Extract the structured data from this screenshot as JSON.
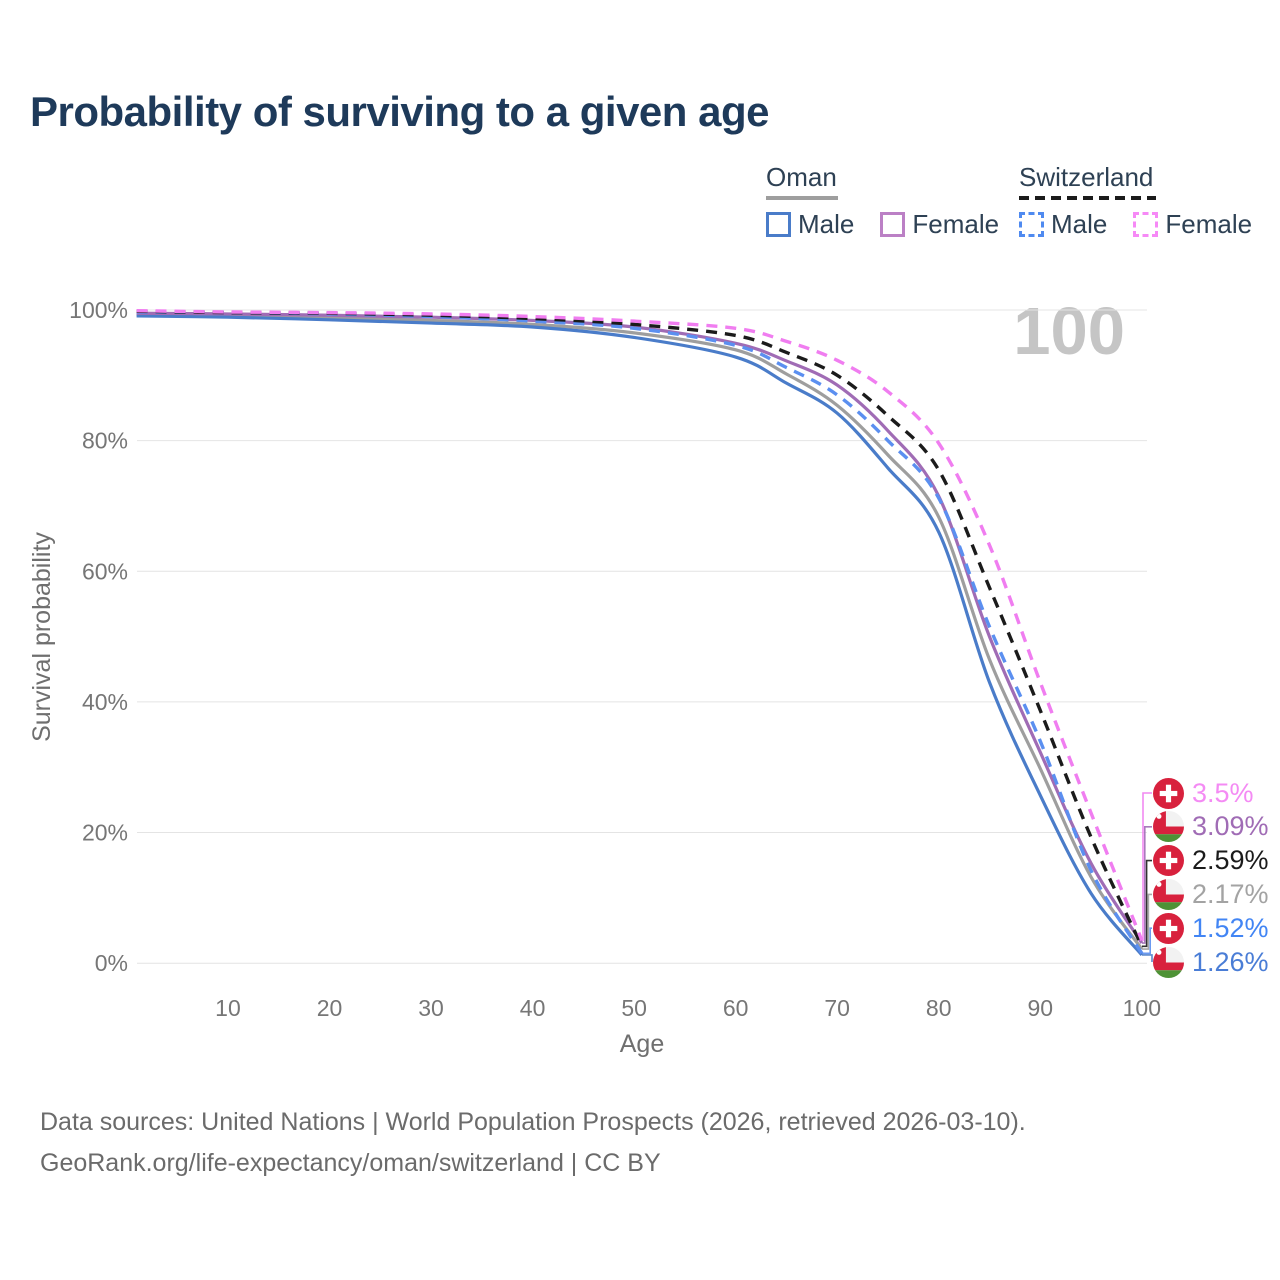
{
  "title": "Probability of surviving to a given age",
  "legend": {
    "oman": {
      "title": "Oman",
      "male": "Male",
      "female": "Female"
    },
    "switzerland": {
      "title": "Switzerland",
      "male": "Male",
      "female": "Female"
    }
  },
  "footer": {
    "line1": "Data sources: United Nations | World Population Prospects (2026, retrieved 2026-03-10).",
    "line2": "GeoRank.org/life-expectancy/oman/switzerland | CC BY"
  },
  "chart_data": {
    "type": "line",
    "title": "Probability of surviving to a given age",
    "xlabel": "Age",
    "ylabel": "Survival probability",
    "watermark": "100",
    "xlim": [
      1,
      100
    ],
    "ylim": [
      0,
      100
    ],
    "x_ticks": [
      10,
      20,
      30,
      40,
      50,
      60,
      70,
      80,
      90,
      100
    ],
    "y_ticks": [
      0,
      20,
      40,
      60,
      80,
      100
    ],
    "y_tick_suffix": "%",
    "grid": "horizontal",
    "legend_position": "top-right",
    "x": [
      1,
      10,
      20,
      30,
      40,
      50,
      60,
      65,
      70,
      75,
      80,
      85,
      90,
      95,
      100
    ],
    "series": [
      {
        "name": "Oman Both sexes",
        "country": "Oman",
        "sex": "both",
        "color": "#9e9e9e",
        "label_color": "#a3a3a3",
        "dashed": false,
        "end_label": "2.17%",
        "values": [
          99.3,
          99.1,
          98.8,
          98.4,
          97.8,
          96.5,
          93.9,
          90.2,
          85.4,
          77.8,
          68.3,
          46.5,
          29.8,
          13.2,
          2.17
        ]
      },
      {
        "name": "Oman Male",
        "country": "Oman",
        "sex": "male",
        "color": "#4a7cc9",
        "label_color": "#4a7dd6",
        "dashed": false,
        "end_label": "1.26%",
        "values": [
          99.1,
          98.9,
          98.5,
          98.0,
          97.4,
          95.8,
          92.8,
          88.8,
          84.2,
          75.8,
          66.0,
          43.0,
          25.7,
          10.7,
          1.26
        ]
      },
      {
        "name": "Oman Female",
        "country": "Oman",
        "sex": "female",
        "color": "#a06cb5",
        "label_color": "#a06cb5",
        "dashed": false,
        "end_label": "3.09%",
        "values": [
          99.5,
          99.4,
          99.2,
          98.9,
          98.4,
          97.4,
          94.9,
          92.2,
          88.5,
          81.5,
          71.5,
          50.0,
          32.3,
          15.3,
          3.09
        ]
      },
      {
        "name": "Switzerland Male",
        "country": "Switzerland",
        "sex": "male",
        "color": "#5b8ff0",
        "label_color": "#4285f4",
        "dashed": true,
        "end_label": "1.52%",
        "values": [
          99.7,
          99.6,
          99.4,
          99.0,
          98.3,
          97.2,
          94.6,
          91.2,
          87.0,
          80.0,
          71.2,
          51.5,
          34.0,
          14.2,
          1.52
        ]
      },
      {
        "name": "Switzerland Both sexes",
        "country": "Switzerland",
        "sex": "both",
        "color": "#1b1b1b",
        "label_color": "#1b1b1b",
        "dashed": true,
        "end_label": "2.59%",
        "values": [
          99.8,
          99.6,
          99.5,
          99.2,
          98.7,
          97.8,
          96.1,
          93.5,
          90.0,
          83.8,
          75.5,
          57.5,
          38.7,
          19.3,
          2.59
        ]
      },
      {
        "name": "Switzerland Female",
        "country": "Switzerland",
        "sex": "female",
        "color": "#f07df0",
        "label_color": "#f48bf4",
        "dashed": true,
        "end_label": "3.5%",
        "values": [
          99.9,
          99.7,
          99.6,
          99.4,
          99.0,
          98.3,
          97.2,
          95.2,
          92.3,
          87.5,
          79.6,
          64.0,
          43.0,
          23.0,
          3.5
        ]
      }
    ]
  }
}
